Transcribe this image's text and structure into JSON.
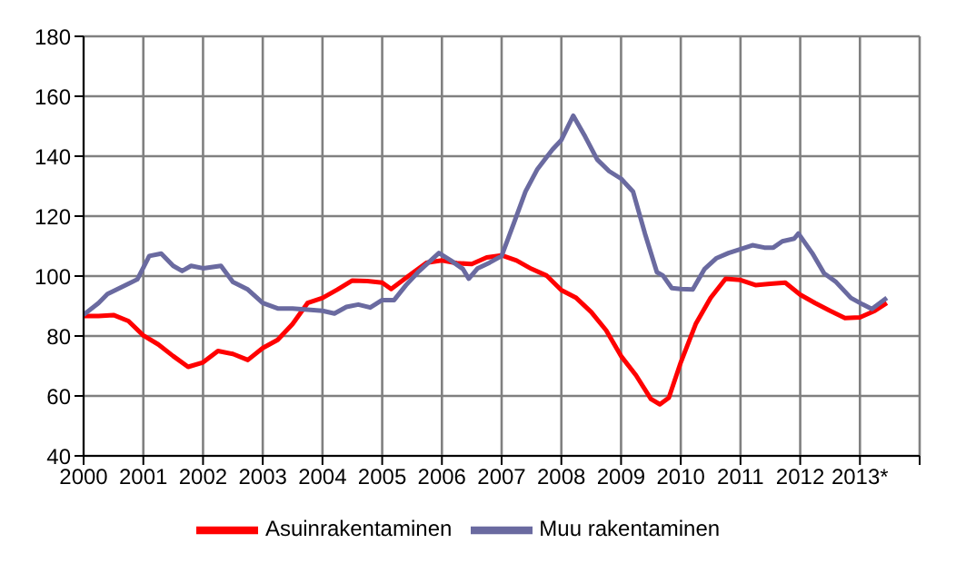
{
  "chart_data": {
    "type": "line",
    "xlim": [
      2000,
      2014
    ],
    "xticks": [
      2000,
      2001,
      2002,
      2003,
      2004,
      2005,
      2006,
      2007,
      2008,
      2009,
      2010,
      2011,
      2012,
      {
        "value": 2013,
        "label": "2013*"
      },
      {
        "value": 2014,
        "label": null
      }
    ],
    "ylim": [
      40,
      180
    ],
    "yticks": [
      40,
      60,
      80,
      100,
      120,
      140,
      160,
      180
    ],
    "grid": true,
    "legend": "bottom",
    "line_style": "solid",
    "marker": "none",
    "series": [
      {
        "name": "Asuinrakentaminen",
        "color": "#ff0000",
        "x": [
          2000,
          2000.25,
          2000.5,
          2000.75,
          2001,
          2001.25,
          2001.5,
          2001.75,
          2002,
          2002.25,
          2002.5,
          2002.75,
          2003,
          2003.25,
          2003.5,
          2003.75,
          2004,
          2004.25,
          2004.5,
          2004.75,
          2005,
          2005.15,
          2005.5,
          2005.75,
          2006,
          2006.25,
          2006.5,
          2006.75,
          2007,
          2007.25,
          2007.5,
          2007.75,
          2008,
          2008.25,
          2008.5,
          2008.75,
          2009,
          2009.25,
          2009.5,
          2009.65,
          2009.8,
          2010,
          2010.25,
          2010.5,
          2010.75,
          2011,
          2011.25,
          2011.5,
          2011.75,
          2012,
          2012.25,
          2012.5,
          2012.75,
          2013,
          2013.25,
          2013.45
        ],
        "values": [
          86.7,
          86.7,
          87,
          85,
          80.2,
          77.2,
          73.3,
          69.7,
          71.2,
          75,
          74,
          72,
          76,
          78.7,
          84,
          91,
          92.7,
          95.5,
          98.5,
          98.3,
          97.8,
          95.7,
          100.9,
          104.5,
          105.2,
          104.3,
          104,
          106.2,
          106.9,
          105.2,
          102.4,
          100.2,
          95.3,
          92.7,
          88,
          81.9,
          73.3,
          66.9,
          59,
          57.2,
          59.4,
          71.2,
          84,
          92.7,
          99.1,
          98.7,
          97,
          97.4,
          97.8,
          93.8,
          91,
          88.4,
          86,
          86.2,
          88.4,
          91
        ]
      },
      {
        "name": "Muu rakentaminen",
        "color": "#6a6aa0",
        "x": [
          2000,
          2000.25,
          2000.4,
          2000.75,
          2000.9,
          2001.1,
          2001.3,
          2001.5,
          2001.65,
          2001.8,
          2002,
          2002.3,
          2002.5,
          2002.75,
          2003,
          2003.25,
          2003.5,
          2003.75,
          2004,
          2004.2,
          2004.4,
          2004.6,
          2004.8,
          2005,
          2005.2,
          2005.4,
          2005.6,
          2005.95,
          2006.15,
          2006.35,
          2006.45,
          2006.6,
          2006.8,
          2007,
          2007.2,
          2007.4,
          2007.6,
          2007.85,
          2008,
          2008.2,
          2008.4,
          2008.6,
          2008.8,
          2009,
          2009.2,
          2009.4,
          2009.6,
          2009.7,
          2009.85,
          2010,
          2010.2,
          2010.4,
          2010.6,
          2010.8,
          2011,
          2011.2,
          2011.4,
          2011.55,
          2011.7,
          2011.9,
          2011.97,
          2012.2,
          2012.4,
          2012.6,
          2012.85,
          2013.05,
          2013.2,
          2013.45
        ],
        "values": [
          87.1,
          91,
          94,
          97.4,
          98.9,
          106.7,
          107.5,
          103.4,
          101.7,
          103.4,
          102.6,
          103.4,
          98,
          95.5,
          91,
          89.2,
          89.2,
          88.8,
          88.4,
          87.5,
          89.7,
          90.5,
          89.5,
          92,
          92,
          97,
          101.3,
          107.7,
          105.2,
          102.4,
          99.1,
          102.6,
          104.5,
          106.7,
          117.4,
          128.2,
          135.7,
          142.2,
          145.4,
          153.5,
          146.5,
          138.9,
          135,
          132.5,
          128.2,
          114.2,
          101.3,
          100.2,
          96,
          95.7,
          95.5,
          102.4,
          106,
          107.7,
          109,
          110.3,
          109.5,
          109.5,
          111.6,
          112.5,
          114.2,
          107.7,
          100.9,
          98,
          92.7,
          90.5,
          89,
          92.7
        ]
      }
    ]
  }
}
